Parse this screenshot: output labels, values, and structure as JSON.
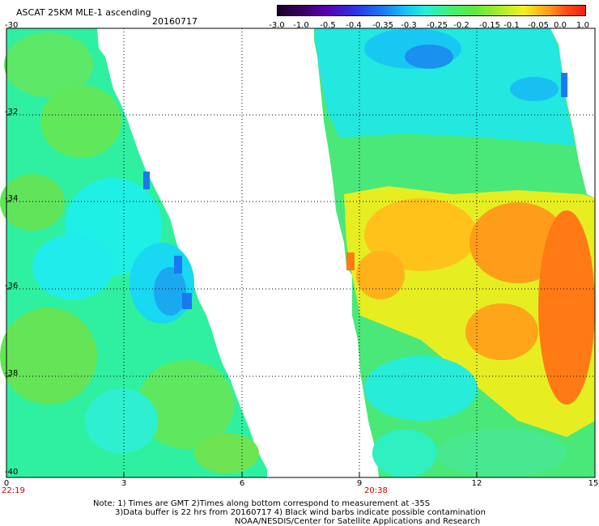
{
  "header": {
    "title": "ASCAT 25KM MLE-1 ascending",
    "date": "20160717"
  },
  "colorbar": {
    "ticks": [
      "-3.0",
      "-1.0",
      "-0.5",
      "-0.4",
      "-0.35",
      "-0.3",
      "-0.25",
      "-0.2",
      "-0.15",
      "-0.1",
      "-0.05",
      "0.0",
      "1.0"
    ],
    "colors": [
      "#1a0026",
      "#3a0062",
      "#5a00b0",
      "#2a38e8",
      "#1a78f0",
      "#12c8f2",
      "#22f0d8",
      "#3ff07a",
      "#5fe83a",
      "#a8ec2a",
      "#f2f21a",
      "#ff9c1a",
      "#ff4a12",
      "#f02010"
    ]
  },
  "axes": {
    "y_ticks": [
      "-30",
      "-32",
      "-34",
      "-36",
      "-38",
      "-40"
    ],
    "x_ticks": [
      "0",
      "3",
      "6",
      "9",
      "12",
      "15"
    ],
    "x_range": [
      0,
      15
    ],
    "y_range": [
      -40,
      -30
    ]
  },
  "pass_times": [
    "22:19",
    "20:38"
  ],
  "notes": [
    "Note: 1) Times are GMT 2)Times along bottom correspond to measurement at -35S",
    "3)Data buffer is 22 hrs from 20160717 4) Black wind barbs indicate possible contamination",
    "NOAA/NESDIS/Center for Satellite Applications and Research"
  ]
}
